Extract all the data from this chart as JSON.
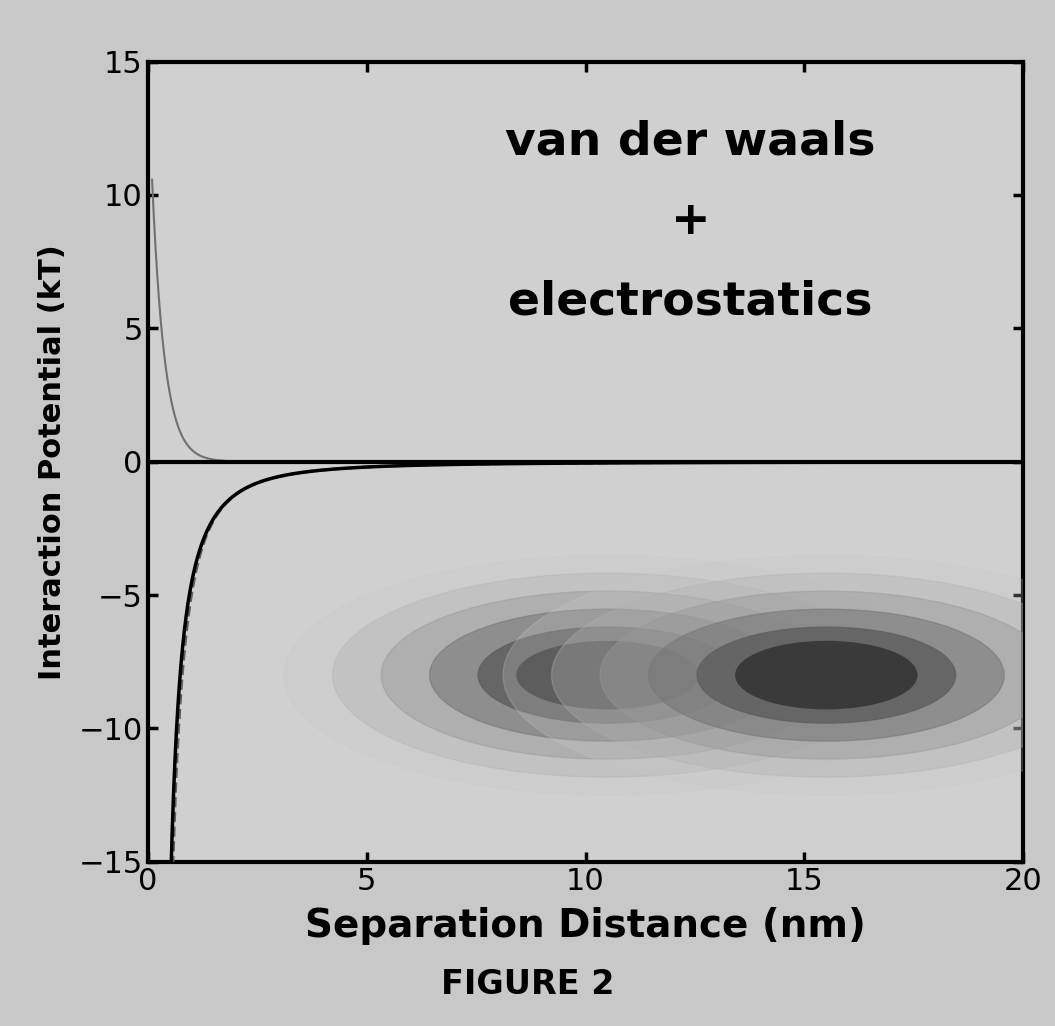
{
  "xlabel": "Separation Distance (nm)",
  "ylabel": "Interaction Potential (kT)",
  "figure_caption": "FIGURE 2",
  "xlim": [
    0,
    20
  ],
  "ylim": [
    -15,
    15
  ],
  "yticks": [
    -15,
    -10,
    -5,
    0,
    5,
    10,
    15
  ],
  "xticks": [
    0,
    5,
    10,
    15,
    20
  ],
  "background_color": "#c8c8c8",
  "plot_bg_color": "#d0d0d0",
  "annotation_text": "van der waals\n+\nelectrostatics",
  "annotation_fontsize": 34,
  "xlabel_fontsize": 28,
  "ylabel_fontsize": 22,
  "tick_fontsize": 22,
  "caption_fontsize": 24,
  "sphere1_x": 10.5,
  "sphere1_y": -8.0,
  "sphere2_x": 15.5,
  "sphere2_y": -8.0,
  "r_core": 2.0,
  "r_mid": 2.7,
  "r_outer": 3.5,
  "core_color": "#3a3a3a",
  "mid_color": "#787878",
  "outer_color": "#b8b8b8"
}
